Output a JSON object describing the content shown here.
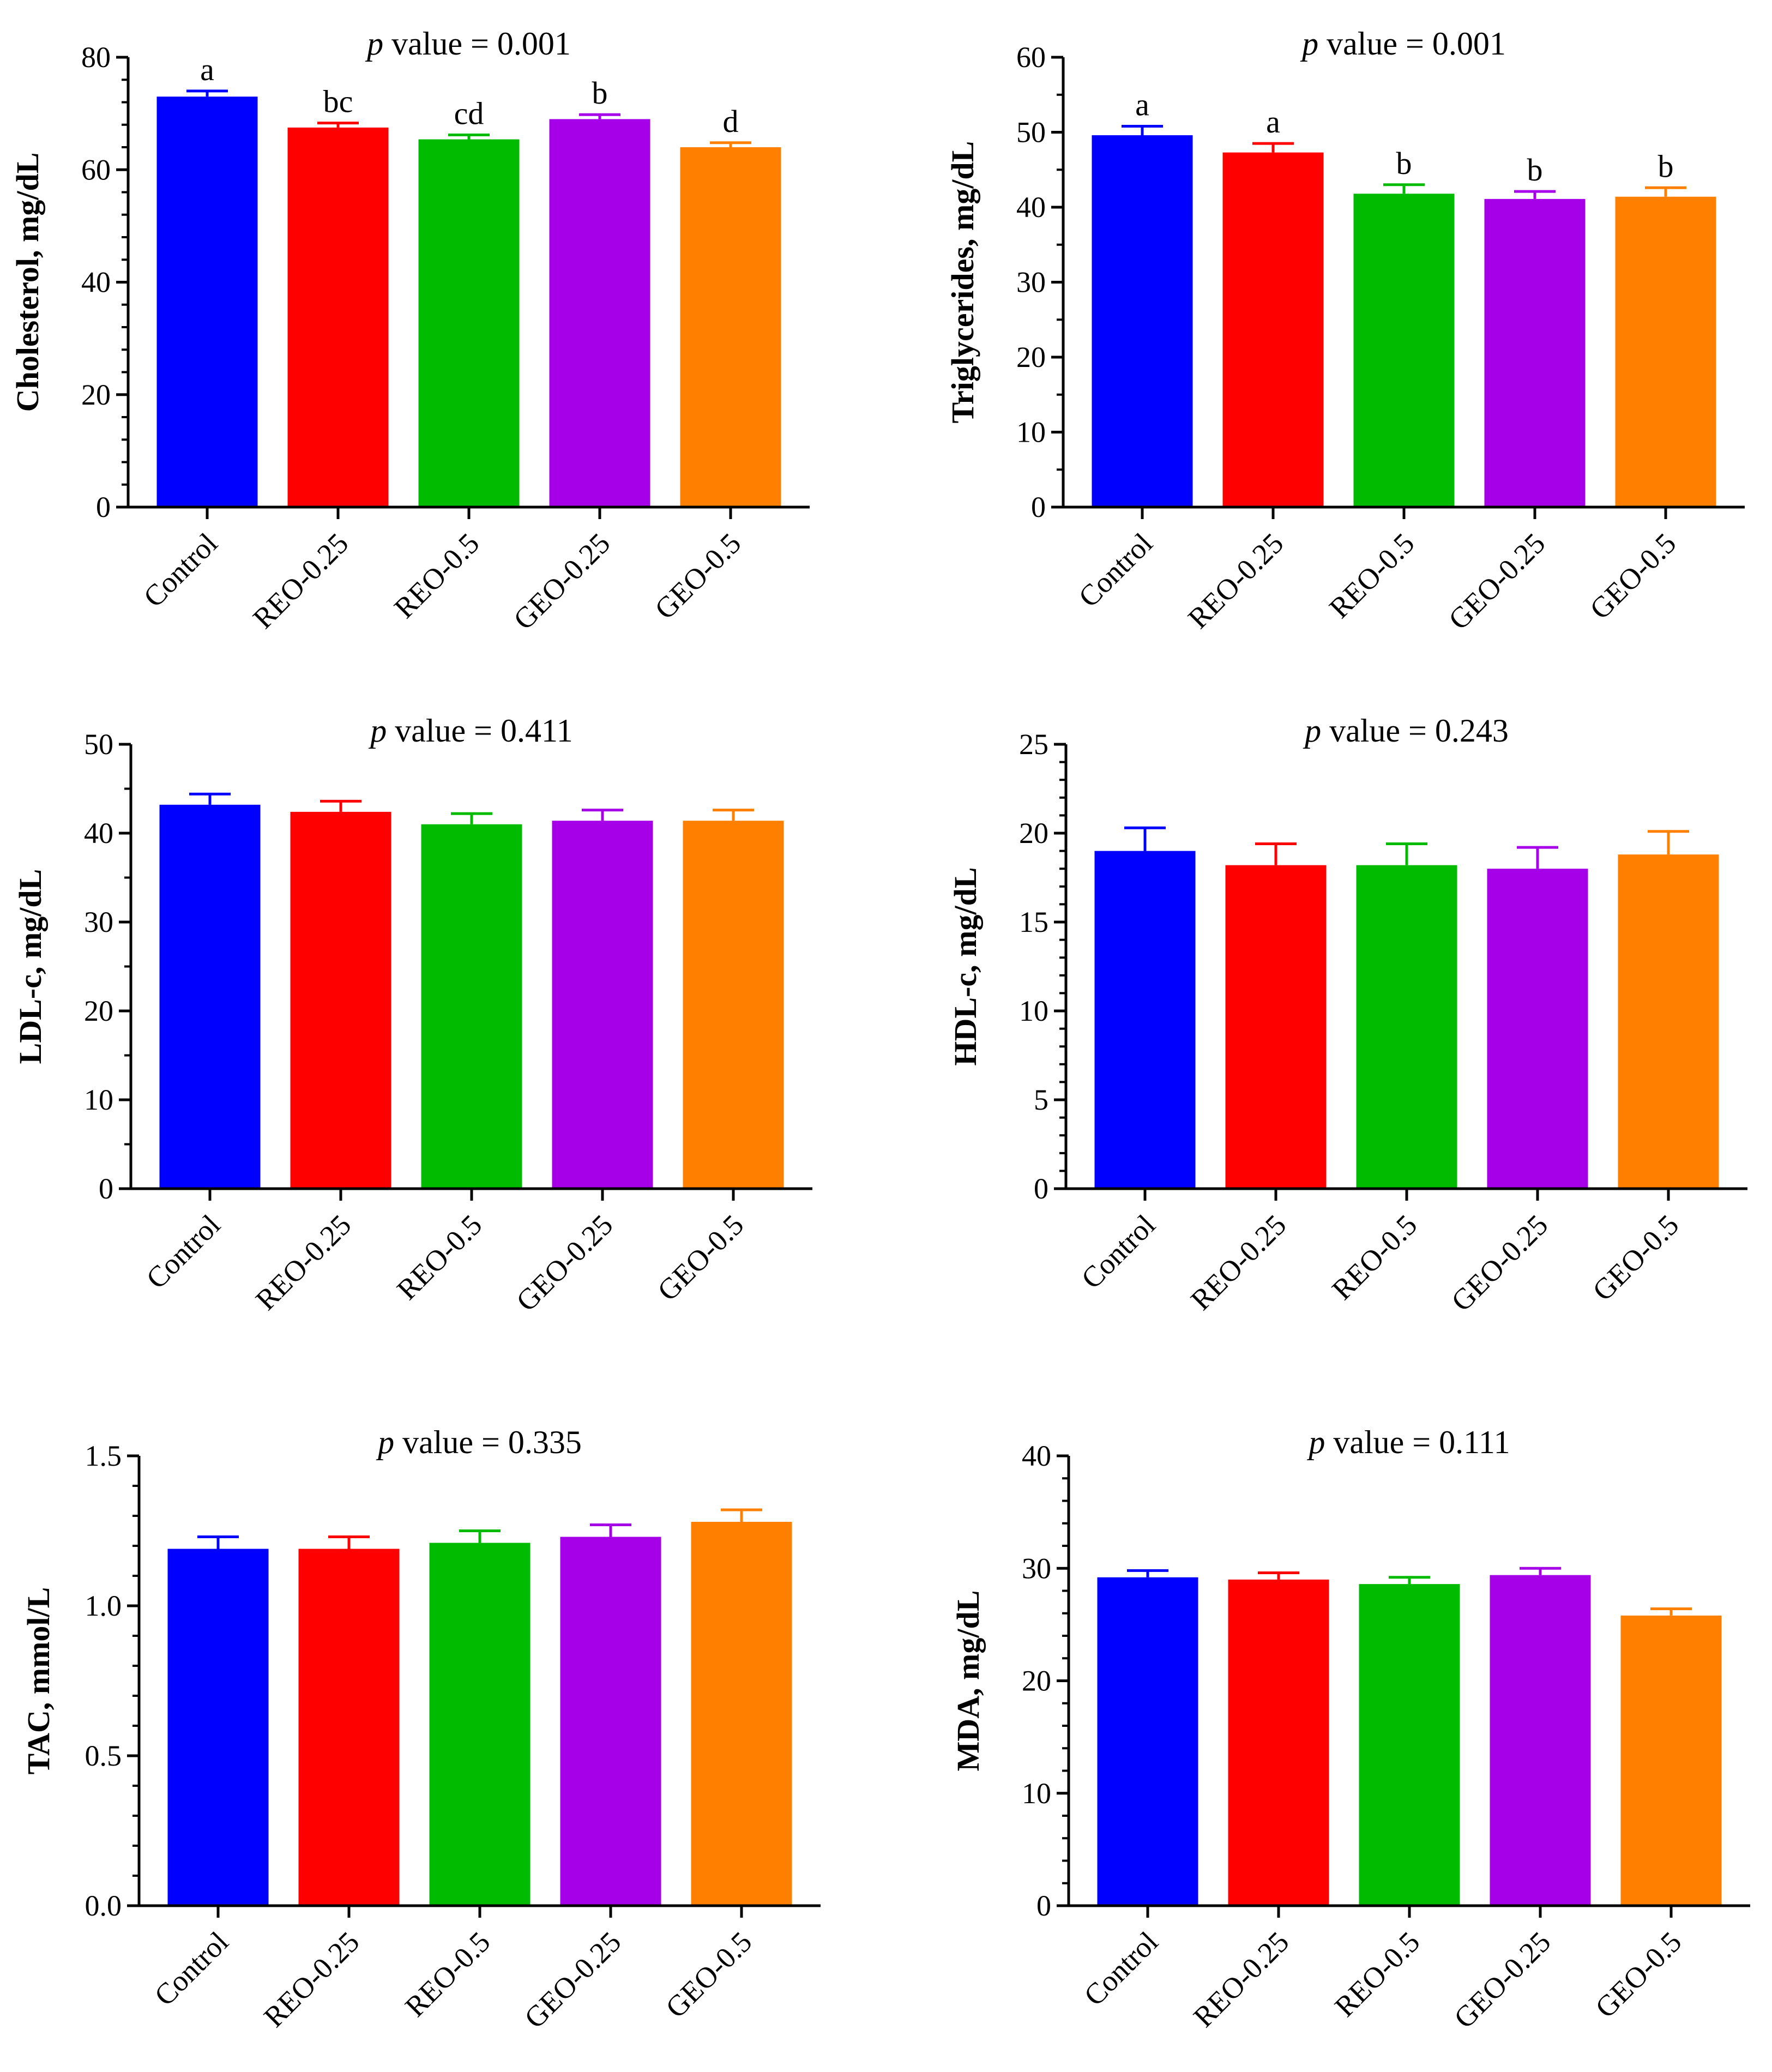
{
  "chart_data": [
    {
      "type": "bar",
      "title_prefix": "p",
      "title_rest": " value = 0.001",
      "ylabel": "Cholesterol, mg/dL",
      "categories": [
        "Control",
        "REO-0.25",
        "REO-0.5",
        "GEO-0.25",
        "GEO-0.5"
      ],
      "values": [
        73.0,
        67.5,
        65.4,
        69.0,
        64.0
      ],
      "errors": [
        1.0,
        0.8,
        0.8,
        0.8,
        0.8
      ],
      "letters": [
        "a",
        "bc",
        "cd",
        "b",
        "d"
      ],
      "ylim": [
        0,
        80
      ],
      "yticks": [
        0,
        20,
        40,
        60,
        80
      ],
      "ytick_labels": [
        "0",
        "20",
        "40",
        "60",
        "80"
      ],
      "minor_ticks": 4,
      "colors": [
        "#0000ff",
        "#ff0000",
        "#00bb00",
        "#a600e8",
        "#ff8000"
      ]
    },
    {
      "type": "bar",
      "title_prefix": "p",
      "title_rest": " value = 0.001",
      "ylabel": "Triglycerides, mg/dL",
      "categories": [
        "Control",
        "REO-0.25",
        "REO-0.5",
        "GEO-0.25",
        "GEO-0.5"
      ],
      "values": [
        49.6,
        47.3,
        41.8,
        41.1,
        41.4
      ],
      "errors": [
        1.2,
        1.2,
        1.2,
        1.0,
        1.2
      ],
      "letters": [
        "a",
        "a",
        "b",
        "b",
        "b"
      ],
      "ylim": [
        0,
        60
      ],
      "yticks": [
        0,
        10,
        20,
        30,
        40,
        50,
        60
      ],
      "ytick_labels": [
        "0",
        "10",
        "20",
        "30",
        "40",
        "50",
        "60"
      ],
      "minor_ticks": 1,
      "colors": [
        "#0000ff",
        "#ff0000",
        "#00bb00",
        "#a600e8",
        "#ff8000"
      ]
    },
    {
      "type": "bar",
      "title_prefix": "p",
      "title_rest": " value = 0.411",
      "ylabel": "LDL-c, mg/dL",
      "categories": [
        "Control",
        "REO-0.25",
        "REO-0.5",
        "GEO-0.25",
        "GEO-0.5"
      ],
      "values": [
        43.2,
        42.4,
        41.0,
        41.4,
        41.4
      ],
      "errors": [
        1.2,
        1.2,
        1.2,
        1.2,
        1.2
      ],
      "ylim": [
        0,
        50
      ],
      "yticks": [
        0,
        10,
        20,
        30,
        40,
        50
      ],
      "ytick_labels": [
        "0",
        "10",
        "20",
        "30",
        "40",
        "50"
      ],
      "minor_ticks": 1,
      "colors": [
        "#0000ff",
        "#ff0000",
        "#00bb00",
        "#a600e8",
        "#ff8000"
      ]
    },
    {
      "type": "bar",
      "title_prefix": "p",
      "title_rest": " value = 0.243",
      "ylabel": "HDL-c, mg/dL",
      "categories": [
        "Control",
        "REO-0.25",
        "REO-0.5",
        "GEO-0.25",
        "GEO-0.5"
      ],
      "values": [
        19.0,
        18.2,
        18.2,
        18.0,
        18.8
      ],
      "errors": [
        1.3,
        1.2,
        1.2,
        1.2,
        1.3
      ],
      "ylim": [
        0,
        25
      ],
      "yticks": [
        0,
        5,
        10,
        15,
        20,
        25
      ],
      "ytick_labels": [
        "0",
        "5",
        "10",
        "15",
        "20",
        "25"
      ],
      "minor_ticks": 4,
      "colors": [
        "#0000ff",
        "#ff0000",
        "#00bb00",
        "#a600e8",
        "#ff8000"
      ]
    },
    {
      "type": "bar",
      "title_prefix": "p",
      "title_rest": " value = 0.335",
      "ylabel": "TAC, mmol/L",
      "categories": [
        "Control",
        "REO-0.25",
        "REO-0.5",
        "GEO-0.25",
        "GEO-0.5"
      ],
      "values": [
        1.19,
        1.19,
        1.21,
        1.23,
        1.28
      ],
      "errors": [
        0.04,
        0.04,
        0.04,
        0.04,
        0.04
      ],
      "ylim": [
        0,
        1.5
      ],
      "yticks": [
        0,
        0.5,
        1.0,
        1.5
      ],
      "ytick_labels": [
        "0.0",
        "0.5",
        "1.0",
        "1.5"
      ],
      "minor_ticks": 4,
      "colors": [
        "#0000ff",
        "#ff0000",
        "#00bb00",
        "#a600e8",
        "#ff8000"
      ]
    },
    {
      "type": "bar",
      "title_prefix": "p",
      "title_rest": " value = 0.111",
      "ylabel": "MDA, mg/dL",
      "categories": [
        "Control",
        "REO-0.25",
        "REO-0.5",
        "GEO-0.25",
        "GEO-0.5"
      ],
      "values": [
        29.2,
        29.0,
        28.6,
        29.4,
        25.8
      ],
      "errors": [
        0.6,
        0.6,
        0.6,
        0.6,
        0.6
      ],
      "ylim": [
        0,
        40
      ],
      "yticks": [
        0,
        10,
        20,
        30,
        40
      ],
      "ytick_labels": [
        "0",
        "10",
        "20",
        "30",
        "40"
      ],
      "minor_ticks": 4,
      "colors": [
        "#0000ff",
        "#ff0000",
        "#00bb00",
        "#a600e8",
        "#ff8000"
      ]
    }
  ]
}
